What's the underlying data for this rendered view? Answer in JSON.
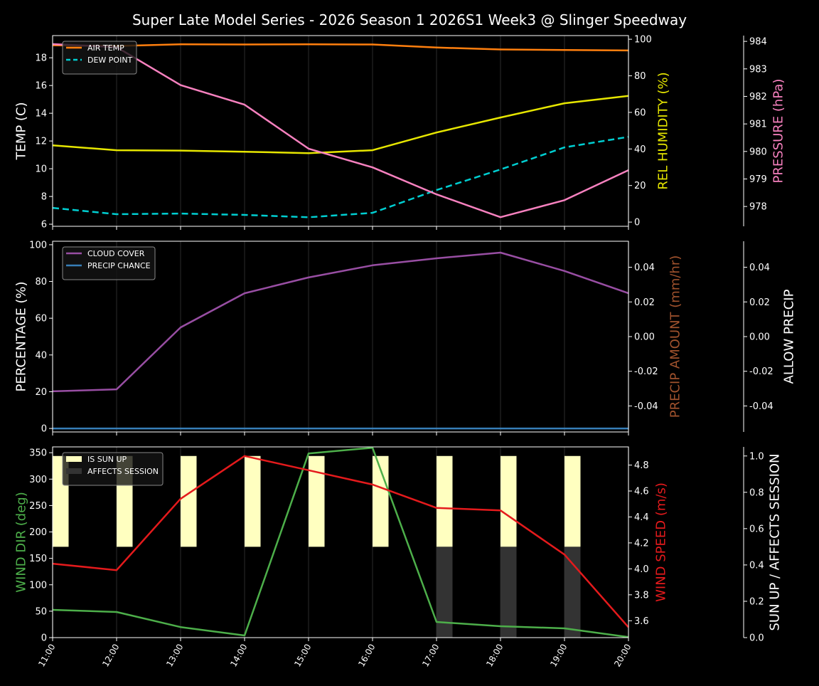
{
  "title": "Super Late Model Series - 2026 Season 1 2026S1 Week3 @ Slinger Speedway",
  "x_tick_labels": [
    "11:00",
    "12:00",
    "13:00",
    "14:00",
    "15:00",
    "16:00",
    "17:00",
    "18:00",
    "19:00",
    "20:00"
  ],
  "chart_data": [
    {
      "type": "line",
      "x": [
        11,
        12,
        13,
        14,
        15,
        16,
        17,
        18,
        19,
        20
      ],
      "xlim": [
        11,
        20
      ],
      "grid": "vertical",
      "legend_placement": "top-left",
      "axes": [
        {
          "id": "temp",
          "side": "left",
          "label": "TEMP (C)",
          "label_color": "#ffffff",
          "ylim": [
            5.85,
            19.6
          ],
          "ticks": [
            6,
            8,
            10,
            12,
            14,
            16,
            18
          ]
        },
        {
          "id": "rh",
          "side": "right",
          "label": "REL HUMIDITY (%)",
          "label_color": "#e6e600",
          "ylim": [
            -2.3,
            102
          ],
          "ticks": [
            0,
            20,
            40,
            60,
            80,
            100
          ]
        },
        {
          "id": "pres",
          "side": "right-outer",
          "label": "PRESSURE (hPa)",
          "label_color": "#f781bf",
          "ylim": [
            977.28,
            984.21
          ],
          "ticks": [
            978,
            979,
            980,
            981,
            982,
            983,
            984
          ]
        }
      ],
      "series": [
        {
          "name": "AIR TEMP",
          "axis": "temp",
          "color": "#ff7f0e",
          "dash": false,
          "in_legend": true,
          "values": [
            18.9,
            18.85,
            18.97,
            18.96,
            18.97,
            18.96,
            18.74,
            18.6,
            18.56,
            18.53
          ]
        },
        {
          "name": "DEW POINT",
          "axis": "temp",
          "color": "#00ced1",
          "dash": true,
          "in_legend": true,
          "values": [
            7.18,
            6.72,
            6.77,
            6.67,
            6.5,
            6.82,
            8.46,
            9.95,
            11.54,
            12.3
          ]
        },
        {
          "axis": "rh",
          "color": "#e6e600",
          "dash": false,
          "in_legend": false,
          "values": [
            42,
            39.3,
            39.1,
            38.5,
            37.7,
            39.3,
            49,
            57.2,
            65,
            69
          ]
        },
        {
          "axis": "pres",
          "color": "#f781bf",
          "dash": false,
          "in_legend": false,
          "values": [
            983.9,
            983.79,
            982.41,
            981.7,
            980.1,
            979.42,
            978.44,
            977.61,
            978.23,
            979.32
          ]
        }
      ]
    },
    {
      "type": "line",
      "x": [
        11,
        12,
        13,
        14,
        15,
        16,
        17,
        18,
        19,
        20
      ],
      "xlim": [
        11,
        20
      ],
      "grid": "vertical",
      "legend_placement": "top-left",
      "axes": [
        {
          "id": "pct",
          "side": "left",
          "label": "PERCENTAGE (%)",
          "label_color": "#ffffff",
          "ylim": [
            -1.9,
            101.9
          ],
          "ticks": [
            0,
            20,
            40,
            60,
            80,
            100
          ]
        },
        {
          "id": "amt",
          "side": "right",
          "label": "PRECIP AMOUNT (mm/hr)",
          "label_color": "#a0522d",
          "ylim": [
            -0.055,
            0.055
          ],
          "ticks": [
            -0.04,
            -0.02,
            0.0,
            0.02,
            0.04
          ],
          "tick_format": 2
        },
        {
          "id": "allow",
          "side": "right-outer",
          "label": "ALLOW PRECIP",
          "label_color": "#ffffff",
          "ylim": [
            -0.055,
            0.055
          ],
          "ticks": [
            -0.04,
            -0.02,
            0.0,
            0.02,
            0.04
          ],
          "tick_format": 2
        }
      ],
      "series": [
        {
          "name": "CLOUD COVER",
          "axis": "pct",
          "color": "#984ea3",
          "dash": false,
          "in_legend": true,
          "values": [
            20.2,
            21.3,
            55,
            73.6,
            82.2,
            88.8,
            92.6,
            95.7,
            85.7,
            73.6
          ]
        },
        {
          "name": "PRECIP CHANCE",
          "axis": "pct",
          "color": "#377eb8",
          "dash": false,
          "in_legend": true,
          "values": [
            0,
            0,
            0,
            0,
            0,
            0,
            0,
            0,
            0,
            0
          ]
        }
      ]
    },
    {
      "type": "line",
      "x": [
        11,
        12,
        13,
        14,
        15,
        16,
        17,
        18,
        19,
        20
      ],
      "xlim": [
        11,
        20
      ],
      "grid": "vertical",
      "legend_placement": "top-left",
      "axes": [
        {
          "id": "dir",
          "side": "left",
          "label": "WIND DIR (deg)",
          "label_color": "#4daf4a",
          "ylim": [
            0,
            361
          ],
          "ticks": [
            0,
            50,
            100,
            150,
            200,
            250,
            300,
            350
          ]
        },
        {
          "id": "spd",
          "side": "right",
          "label": "WIND SPEED (m/s)",
          "label_color": "#e41a1c",
          "ylim": [
            3.47,
            4.94
          ],
          "ticks": [
            3.6,
            3.8,
            4.0,
            4.2,
            4.4,
            4.6,
            4.8
          ],
          "tick_format": 1
        },
        {
          "id": "sun",
          "side": "right-outer",
          "label": "SUN UP / AFFECTS SESSION",
          "label_color": "#ffffff",
          "ylim": [
            0,
            1.05
          ],
          "ticks": [
            0.0,
            0.2,
            0.4,
            0.6,
            0.8,
            1.0
          ],
          "tick_format": 1
        }
      ],
      "bars": [
        {
          "name": "IS SUN UP",
          "axis": "sun",
          "color": "#ffffc0",
          "values": [
            1,
            1,
            1,
            1,
            1,
            1,
            1,
            1,
            1,
            0
          ]
        },
        {
          "name": "AFFECTS SESSION",
          "axis": "sun",
          "color": "#333333",
          "values": [
            0,
            0,
            0,
            0,
            0,
            0,
            1,
            1,
            1,
            0
          ]
        }
      ],
      "series": [
        {
          "axis": "dir",
          "color": "#4daf4a",
          "dash": false,
          "in_legend": false,
          "values": [
            52.5,
            48.5,
            20,
            4,
            348.6,
            359.4,
            29.6,
            21.5,
            17.5,
            1
          ]
        },
        {
          "axis": "spd",
          "color": "#e41a1c",
          "dash": false,
          "in_legend": false,
          "values": [
            4.04,
            3.99,
            4.54,
            4.87,
            4.76,
            4.65,
            4.47,
            4.45,
            4.11,
            3.55
          ]
        }
      ]
    }
  ]
}
